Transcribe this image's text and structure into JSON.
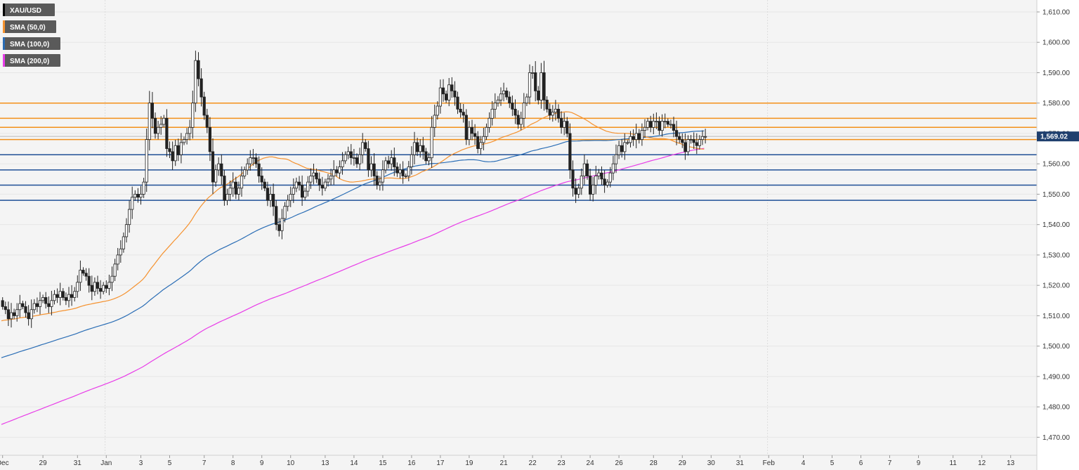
{
  "chart_data": {
    "type": "candlestick",
    "instrument": "XAU/USD",
    "legend": [
      {
        "label": "XAU/USD",
        "color": "#000000"
      },
      {
        "label": "SMA (50,0)",
        "color": "#f5922f"
      },
      {
        "label": "SMA (100,0)",
        "color": "#2a6db5"
      },
      {
        "label": "SMA (200,0)",
        "color": "#e83ce8"
      }
    ],
    "ylim": [
      1465,
      1613
    ],
    "y_ticks": [
      1470,
      1480,
      1490,
      1500,
      1510,
      1520,
      1530,
      1540,
      1550,
      1560,
      1570,
      1580,
      1590,
      1600,
      1610
    ],
    "y_tick_labels": [
      "1,470.00",
      "1,480.00",
      "1,490.00",
      "1,500.00",
      "1,510.00",
      "1,520.00",
      "1,530.00",
      "1,540.00",
      "1,550.00",
      "1,560.00",
      "1,570.00",
      "1,580.00",
      "1,590.00",
      "1,600.00",
      "1,610.00"
    ],
    "x_labels": [
      "Dec",
      "29",
      "31",
      "Jan",
      "3",
      "5",
      "7",
      "8",
      "9",
      "10",
      "13",
      "14",
      "15",
      "16",
      "17",
      "19",
      "21",
      "22",
      "23",
      "24",
      "26",
      "28",
      "29",
      "30",
      "31",
      "Feb",
      "4",
      "5",
      "6",
      "7",
      "9",
      "11",
      "12",
      "13"
    ],
    "x_label_index": [
      0,
      14,
      26,
      36,
      48,
      58,
      70,
      80,
      90,
      100,
      112,
      122,
      132,
      142,
      152,
      162,
      174,
      184,
      194,
      204,
      214,
      226,
      236,
      246,
      256,
      266,
      278,
      288,
      298,
      308,
      318,
      330,
      340,
      350
    ],
    "separator_index": [
      36,
      266
    ],
    "current_price": 1569.02,
    "current_price_label": "1,569.02",
    "resistance_levels": [
      1580,
      1575,
      1572,
      1568
    ],
    "support_levels": [
      1563,
      1558,
      1553,
      1548
    ],
    "close": [
      1513,
      1512,
      1509,
      1511,
      1510,
      1512,
      1514,
      1513,
      1511,
      1509,
      1512,
      1514,
      1513,
      1515,
      1516,
      1514,
      1513,
      1515,
      1517,
      1516,
      1518,
      1516,
      1515,
      1517,
      1516,
      1518,
      1521,
      1525,
      1524,
      1523,
      1520,
      1518,
      1521,
      1519,
      1518,
      1520,
      1519,
      1521,
      1523,
      1527,
      1530,
      1532,
      1536,
      1540,
      1545,
      1549,
      1550,
      1549,
      1550,
      1554,
      1568,
      1580,
      1575,
      1570,
      1572,
      1573,
      1575,
      1565,
      1564,
      1561,
      1566,
      1563,
      1567,
      1568,
      1570,
      1572,
      1580,
      1594,
      1588,
      1582,
      1576,
      1572,
      1564,
      1554,
      1558,
      1560,
      1556,
      1548,
      1550,
      1552,
      1554,
      1550,
      1552,
      1556,
      1558,
      1560,
      1562,
      1562,
      1560,
      1556,
      1554,
      1552,
      1548,
      1550,
      1546,
      1540,
      1538,
      1542,
      1546,
      1548,
      1550,
      1552,
      1554,
      1553,
      1549,
      1551,
      1554,
      1556,
      1557,
      1555,
      1553,
      1552,
      1554,
      1555,
      1556,
      1558,
      1557,
      1559,
      1561,
      1563,
      1564,
      1562,
      1562,
      1560,
      1563,
      1567,
      1565,
      1558,
      1560,
      1556,
      1553,
      1554,
      1558,
      1561,
      1560,
      1562,
      1559,
      1557,
      1558,
      1556,
      1556,
      1559,
      1563,
      1567,
      1564,
      1566,
      1564,
      1561,
      1562,
      1572,
      1576,
      1579,
      1585,
      1583,
      1581,
      1586,
      1584,
      1582,
      1578,
      1577,
      1576,
      1568,
      1572,
      1570,
      1569,
      1565,
      1567,
      1569,
      1572,
      1575,
      1578,
      1580,
      1581,
      1583,
      1584,
      1582,
      1580,
      1578,
      1576,
      1573,
      1575,
      1580,
      1582,
      1590,
      1590,
      1584,
      1581,
      1590,
      1581,
      1578,
      1576,
      1577,
      1578,
      1575,
      1572,
      1574,
      1570,
      1558,
      1552,
      1550,
      1552,
      1556,
      1560,
      1556,
      1550,
      1553,
      1556,
      1557,
      1555,
      1553,
      1554,
      1557,
      1560,
      1563,
      1566,
      1564,
      1567,
      1567,
      1569,
      1568,
      1570,
      1568,
      1571,
      1572,
      1574,
      1572,
      1574,
      1574,
      1571,
      1574,
      1574,
      1573,
      1573,
      1571,
      1569,
      1568,
      1567,
      1564,
      1568,
      1568,
      1567,
      1566,
      1568,
      1569,
      1569
    ]
  }
}
